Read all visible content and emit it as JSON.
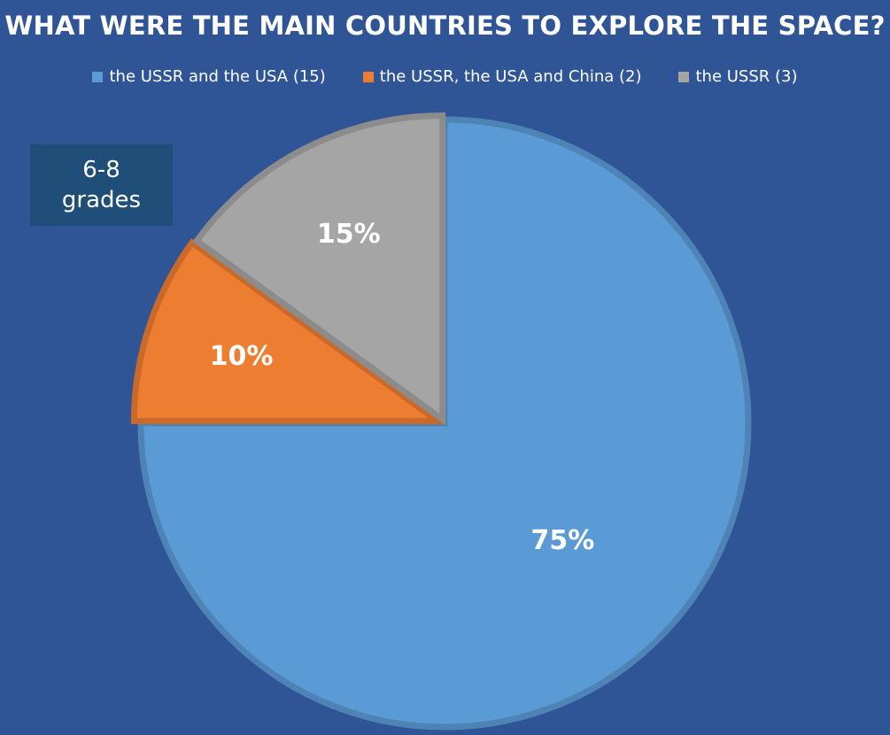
{
  "chart_data": {
    "type": "pie",
    "title": "WHAT WERE THE MAIN COUNTRIES TO EXPLORE THE SPACE?",
    "legend_position": "top",
    "slices": [
      {
        "label": "the USSR and the USA (15)",
        "value": 75,
        "data_label": "75%",
        "color": "#5b9bd5"
      },
      {
        "label": "the USSR, the USA and China (2)",
        "value": 10,
        "data_label": "10%",
        "color": "#ed7d31"
      },
      {
        "label": "the USSR (3)",
        "value": 15,
        "data_label": "15%",
        "color": "#a5a5a5"
      }
    ]
  },
  "annotation": {
    "line1": "6-8",
    "line2": "grades"
  },
  "colors": {
    "background": "#2f5597",
    "annotation_box": "#1f4e79",
    "text": "#ffffff"
  }
}
